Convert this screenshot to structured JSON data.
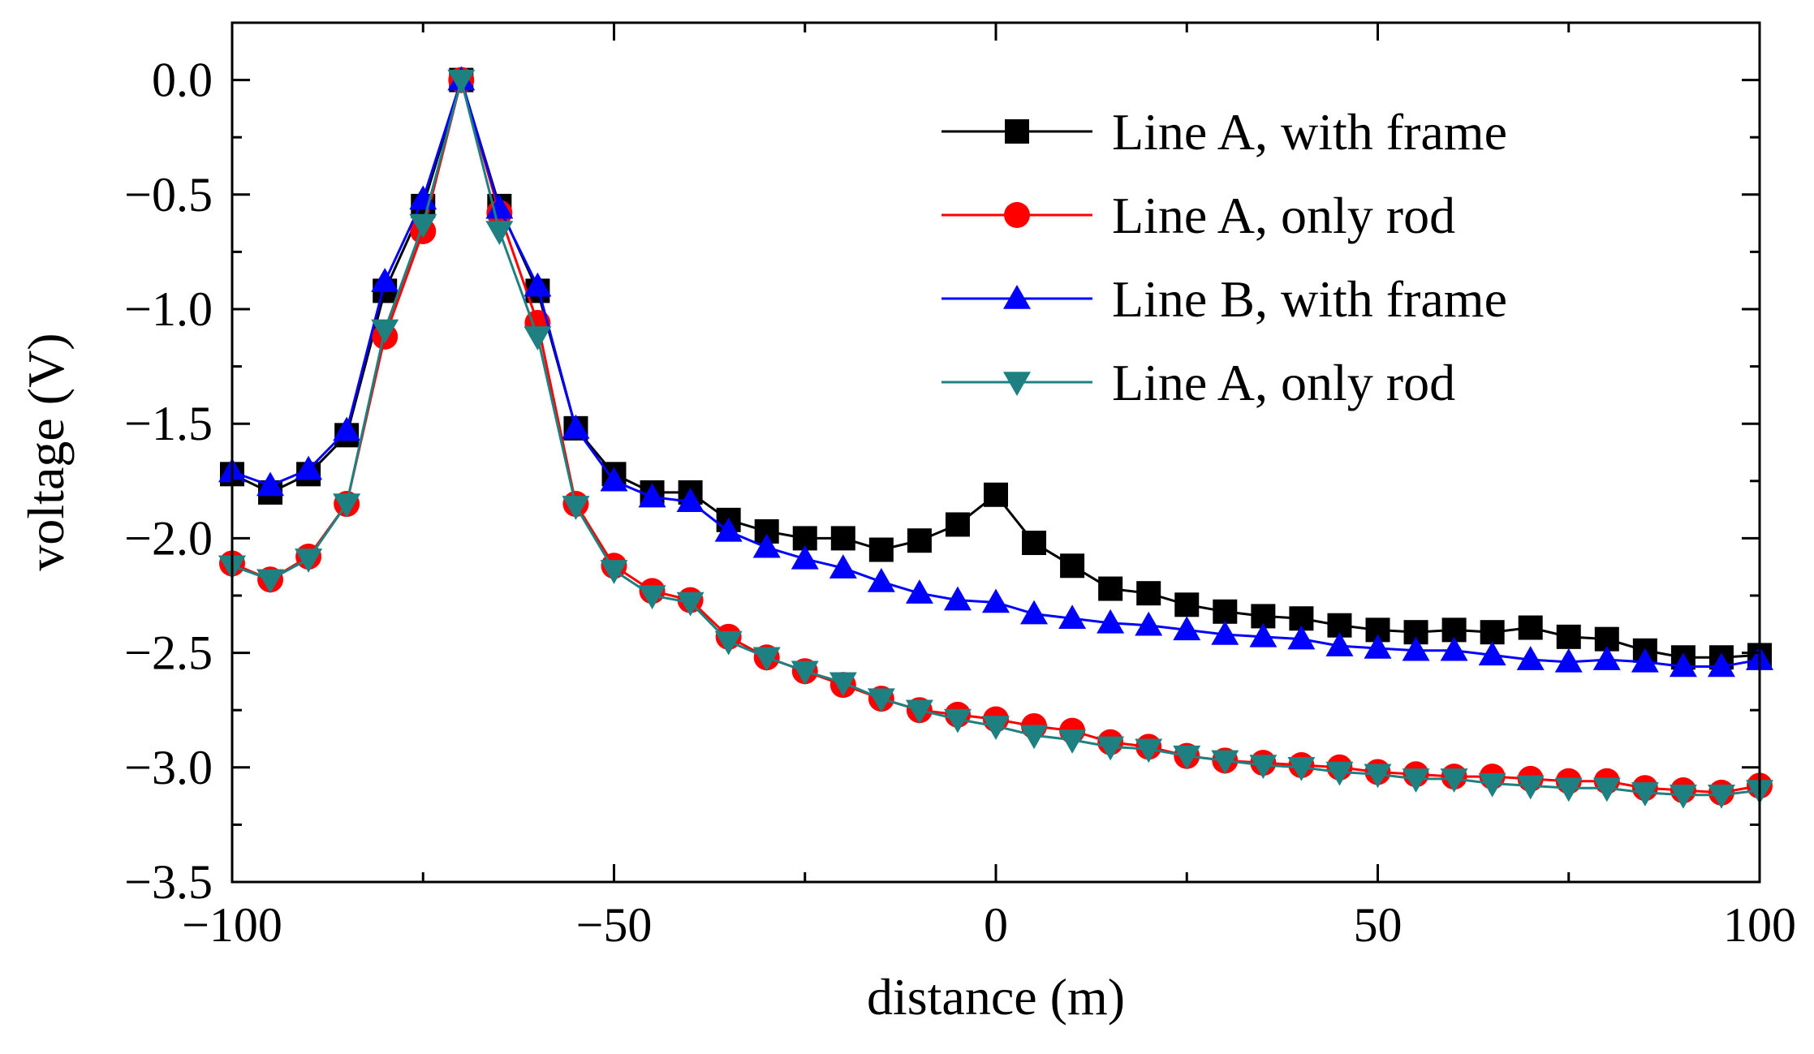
{
  "chart_data": {
    "type": "line",
    "title": "",
    "xlabel": "distance (m)",
    "ylabel": "voltage (V)",
    "xlim": [
      -100,
      100
    ],
    "ylim": [
      -3.5,
      0.25
    ],
    "xticks": [
      -100,
      -50,
      0,
      50,
      100
    ],
    "xtick_labels": [
      "−100",
      "−50",
      "0",
      "50",
      "100"
    ],
    "yticks": [
      0.0,
      -0.5,
      -1.0,
      -1.5,
      -2.0,
      -2.5,
      -3.0,
      -3.5
    ],
    "ytick_labels": [
      "0.0",
      "−0.5",
      "−1.0",
      "−1.5",
      "−2.0",
      "−2.5",
      "−3.0",
      "−3.5"
    ],
    "grid": false,
    "legend_position": "top-right",
    "x": [
      -100,
      -95,
      -90,
      -85,
      -80,
      -75,
      -70,
      -65,
      -60,
      -55,
      -50,
      -45,
      -40,
      -35,
      -30,
      -25,
      -20,
      -15,
      -10,
      -5,
      0,
      5,
      10,
      15,
      20,
      25,
      30,
      35,
      40,
      45,
      50,
      55,
      60,
      65,
      70,
      75,
      80,
      85,
      90,
      95,
      100
    ],
    "series": [
      {
        "name": "Line A, with frame",
        "color": "#000000",
        "marker": "square",
        "values": [
          -1.72,
          -1.8,
          -1.72,
          -1.55,
          -0.92,
          -0.55,
          0.0,
          -0.55,
          -0.92,
          -1.52,
          -1.72,
          -1.8,
          -1.8,
          -1.92,
          -1.97,
          -2.0,
          -2.0,
          -2.05,
          -2.01,
          -1.94,
          -1.81,
          -2.02,
          -2.12,
          -2.22,
          -2.24,
          -2.29,
          -2.32,
          -2.34,
          -2.35,
          -2.38,
          -2.4,
          -2.41,
          -2.4,
          -2.41,
          -2.39,
          -2.43,
          -2.44,
          -2.49,
          -2.52,
          -2.52,
          -2.51
        ]
      },
      {
        "name": "Line A, only rod",
        "color": "#ff0000",
        "marker": "circle",
        "values": [
          -2.11,
          -2.18,
          -2.08,
          -1.85,
          -1.12,
          -0.66,
          0.0,
          -0.58,
          -1.06,
          -1.85,
          -2.12,
          -2.23,
          -2.27,
          -2.43,
          -2.52,
          -2.58,
          -2.64,
          -2.7,
          -2.75,
          -2.77,
          -2.79,
          -2.82,
          -2.84,
          -2.89,
          -2.91,
          -2.95,
          -2.97,
          -2.98,
          -2.99,
          -3.0,
          -3.02,
          -3.03,
          -3.04,
          -3.04,
          -3.05,
          -3.06,
          -3.06,
          -3.09,
          -3.1,
          -3.11,
          -3.08
        ]
      },
      {
        "name": "Line B, with frame",
        "color": "#0000ff",
        "marker": "triangle-up",
        "values": [
          -1.71,
          -1.77,
          -1.7,
          -1.53,
          -0.88,
          -0.52,
          0.0,
          -0.56,
          -0.9,
          -1.52,
          -1.75,
          -1.82,
          -1.84,
          -1.97,
          -2.04,
          -2.09,
          -2.13,
          -2.19,
          -2.24,
          -2.27,
          -2.28,
          -2.33,
          -2.35,
          -2.37,
          -2.38,
          -2.4,
          -2.42,
          -2.43,
          -2.44,
          -2.47,
          -2.48,
          -2.49,
          -2.49,
          -2.51,
          -2.53,
          -2.54,
          -2.53,
          -2.54,
          -2.56,
          -2.56,
          -2.53
        ]
      },
      {
        "name": "Line A, only rod",
        "color": "#1e8080",
        "marker": "triangle-down",
        "values": [
          -2.12,
          -2.18,
          -2.09,
          -1.85,
          -1.09,
          -0.63,
          0.0,
          -0.66,
          -1.12,
          -1.86,
          -2.14,
          -2.25,
          -2.28,
          -2.45,
          -2.52,
          -2.58,
          -2.63,
          -2.7,
          -2.75,
          -2.79,
          -2.82,
          -2.86,
          -2.88,
          -2.91,
          -2.92,
          -2.95,
          -2.97,
          -2.99,
          -3.0,
          -3.02,
          -3.03,
          -3.05,
          -3.05,
          -3.07,
          -3.08,
          -3.09,
          -3.09,
          -3.11,
          -3.12,
          -3.12,
          -3.1
        ]
      }
    ]
  }
}
